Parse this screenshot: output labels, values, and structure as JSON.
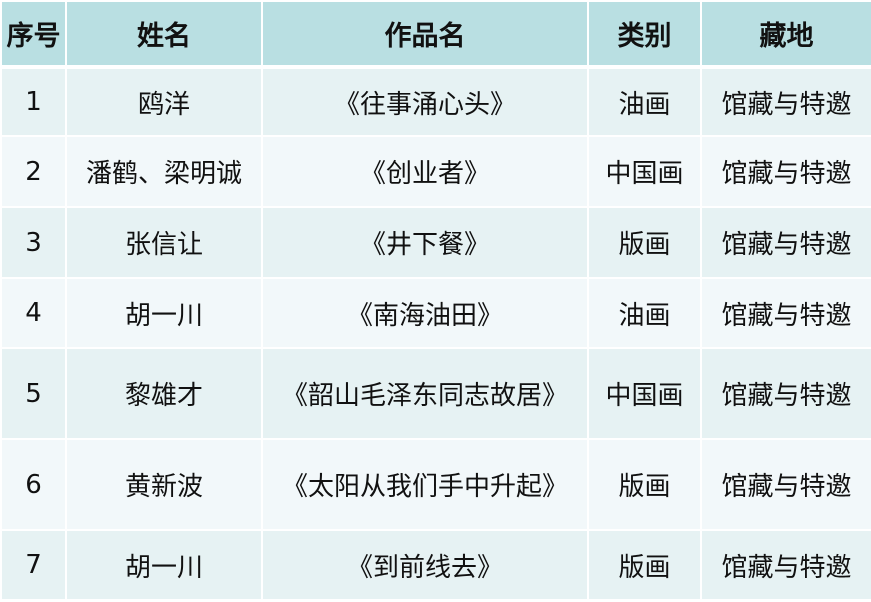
{
  "headers": [
    "序号",
    "姓名",
    "作品名",
    "类别",
    "藏地"
  ],
  "rows": [
    {
      "no": "1",
      "name": "鸥洋",
      "work": "《往事涌心头》",
      "type": "油画",
      "place": "馆藏与特邀"
    },
    {
      "no": "2",
      "name": "潘鹤、梁明诚",
      "work": "《创业者》",
      "type": "中国画",
      "place": "馆藏与特邀"
    },
    {
      "no": "3",
      "name": "张信让",
      "work": "《井下餐》",
      "type": "版画",
      "place": "馆藏与特邀"
    },
    {
      "no": "4",
      "name": "胡一川",
      "work": "《南海油田》",
      "type": "油画",
      "place": "馆藏与特邀"
    },
    {
      "no": "5",
      "name": "黎雄才",
      "work": "《韶山毛泽东同志故居》",
      "type": "中国画",
      "place": "馆藏与特邀"
    },
    {
      "no": "6",
      "name": "黄新波",
      "work": "《太阳从我们手中升起》",
      "type": "版画",
      "place": "馆藏与特邀"
    },
    {
      "no": "7",
      "name": "胡一川",
      "work": "《到前线去》",
      "type": "版画",
      "place": "馆藏与特邀"
    }
  ]
}
